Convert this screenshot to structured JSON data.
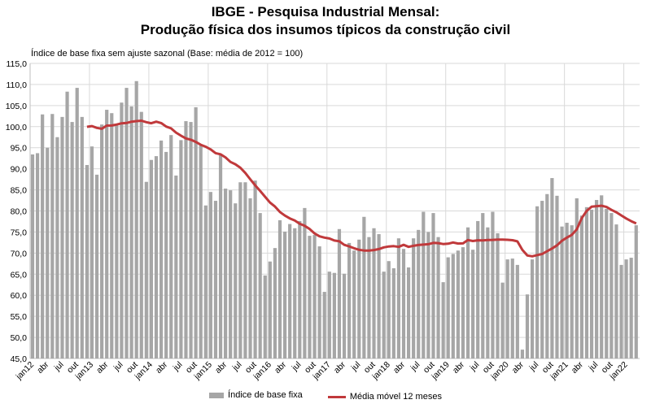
{
  "chart_data": {
    "type": "bar",
    "title": [
      "IBGE - Pesquisa Industrial Mensal:",
      "Produção física dos insumos típicos da construção civil"
    ],
    "subtitle": "Índice de base fixa sem ajuste sazonal (Base: média de 2012 = 100)",
    "xlabel": "",
    "ylabel": "",
    "ylim": [
      45,
      115
    ],
    "yticks": [
      "45,0",
      "50,0",
      "55,0",
      "60,0",
      "65,0",
      "70,0",
      "75,0",
      "80,0",
      "85,0",
      "90,0",
      "95,0",
      "100,0",
      "105,0",
      "110,0",
      "115,0"
    ],
    "ytick_values": [
      45,
      50,
      55,
      60,
      65,
      70,
      75,
      80,
      85,
      90,
      95,
      100,
      105,
      110,
      115
    ],
    "grid": true,
    "legend_position": "bottom",
    "start": "jan12",
    "xtick_labels": [
      "jan12",
      "abr",
      "jul",
      "out",
      "jan13",
      "abr",
      "jul",
      "out",
      "jan14",
      "abr",
      "jul",
      "out",
      "jan15",
      "abr",
      "jul",
      "out",
      "jan16",
      "abr",
      "jul",
      "out",
      "jan17",
      "abr",
      "jul",
      "out",
      "jan18",
      "abr",
      "jul",
      "out",
      "jan19",
      "abr",
      "jul",
      "out",
      "jan20",
      "abr",
      "jul",
      "out",
      "jan21",
      "abr",
      "jul",
      "out",
      "jan22"
    ],
    "series": [
      {
        "name": "Índice de base fixa",
        "type": "bar",
        "color": "#a6a6a6",
        "values": [
          93.4,
          93.7,
          102.9,
          95.0,
          103.0,
          97.5,
          102.3,
          108.3,
          101.1,
          109.2,
          102.3,
          90.9,
          95.3,
          88.6,
          100.5,
          104.0,
          103.2,
          100.3,
          105.7,
          109.2,
          104.8,
          110.8,
          103.5,
          86.9,
          92.1,
          93.0,
          96.7,
          94.0,
          98.0,
          88.4,
          96.8,
          101.3,
          101.1,
          104.6,
          95.5,
          81.3,
          84.5,
          82.4,
          93.4,
          85.3,
          84.9,
          81.8,
          86.8,
          86.8,
          83.0,
          87.2,
          79.5,
          64.7,
          68.0,
          71.2,
          77.8,
          75.1,
          76.9,
          75.9,
          77.6,
          80.7,
          74.1,
          74.3,
          71.6,
          60.8,
          65.6,
          65.3,
          75.7,
          65.1,
          72.4,
          70.6,
          73.2,
          78.6,
          73.8,
          75.9,
          74.5,
          65.6,
          68.1,
          66.4,
          73.5,
          71.0,
          66.6,
          73.5,
          75.5,
          79.8,
          75.0,
          79.5,
          73.8,
          63.1,
          69.0,
          69.8,
          70.6,
          71.4,
          76.1,
          70.8,
          77.6,
          79.5,
          76.1,
          79.8,
          74.7,
          63.0,
          68.5,
          68.7,
          67.2,
          47.1,
          60.2,
          68.5,
          81.1,
          82.4,
          84.0,
          87.8,
          83.6,
          76.3,
          77.2,
          76.6,
          83.0,
          78.9,
          80.9,
          80.3,
          82.6,
          83.7,
          80.5,
          79.5,
          76.8,
          67.2,
          68.5,
          68.9,
          76.6
        ]
      },
      {
        "name": "Média móvel 12 meses",
        "type": "line",
        "color": "#c0393b",
        "window": 12
      }
    ]
  }
}
